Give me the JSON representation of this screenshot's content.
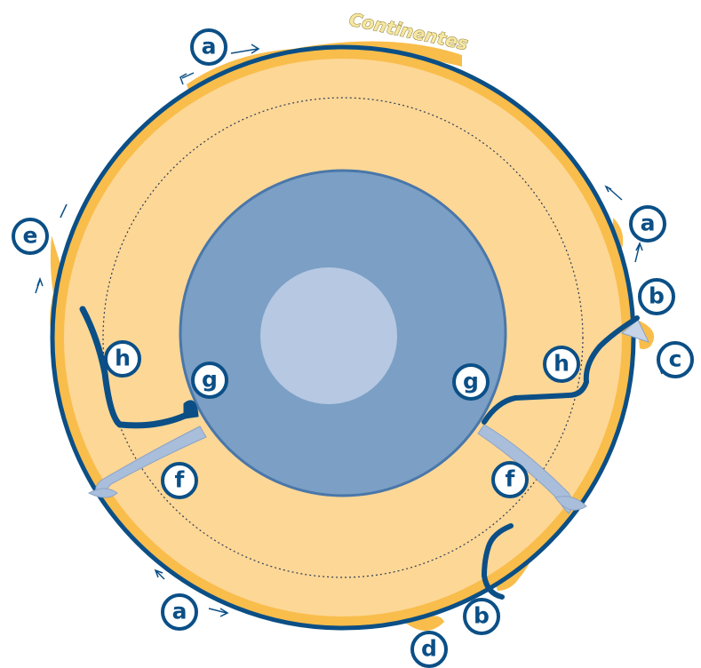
{
  "title": "Continentes",
  "labels": {
    "a_top": "a",
    "a_right": "a",
    "a_bottom": "a",
    "b_right": "b",
    "b_bottom": "b",
    "c": "c",
    "d": "d",
    "e": "e",
    "f_left": "f",
    "f_right": "f",
    "g_left": "g",
    "g_right": "g",
    "h_left": "h",
    "h_right": "h"
  },
  "colors": {
    "crust": "#f9bd4b",
    "mantle": "#fdd796",
    "outer_core": "#7b9fc5",
    "inner_core": "#b6c8e2",
    "outline": "#0b4f86",
    "plume": "#a9bedb"
  }
}
